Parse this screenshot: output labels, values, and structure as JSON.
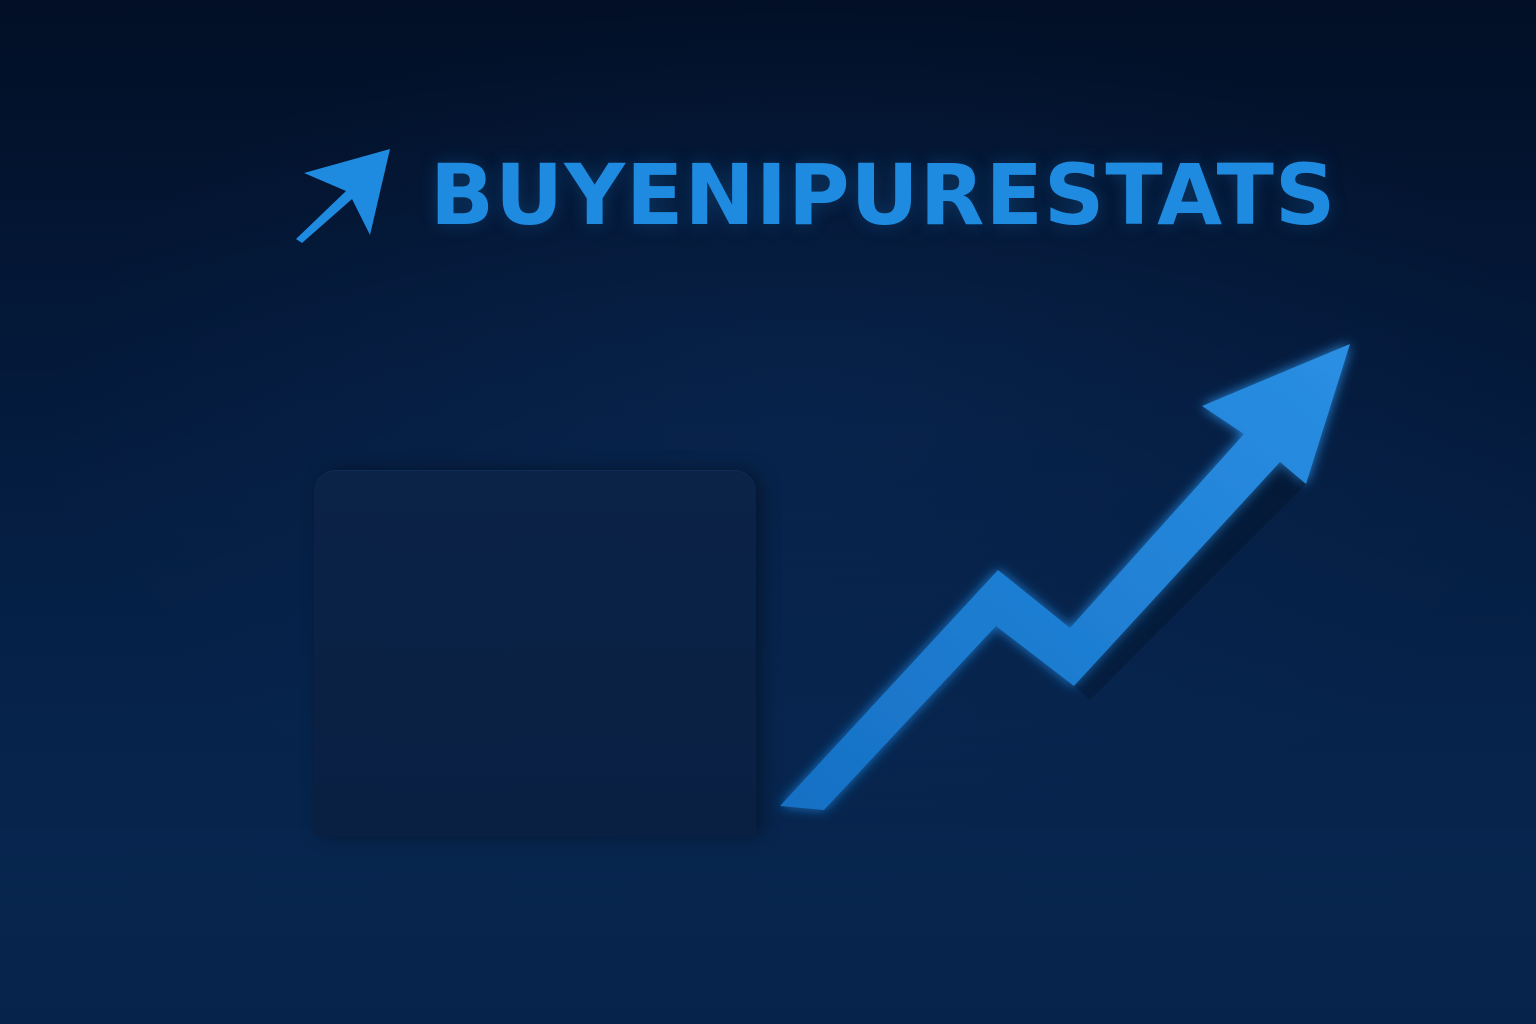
{
  "brand": {
    "name": "BUYENIPURESTATS",
    "icon": "arrow-up-right-icon",
    "color": "#1e8be0"
  },
  "colors": {
    "background": "#04193a",
    "accent": "#1e8be0",
    "panel": "#0a2144"
  },
  "illustration": {
    "panel": "blank-card",
    "trend_icon": "trend-up-arrow-icon"
  }
}
